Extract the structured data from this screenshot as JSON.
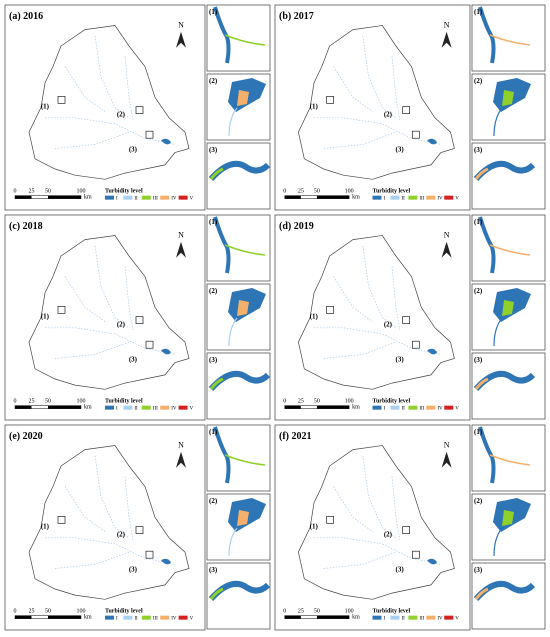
{
  "panels": [
    {
      "label": "(a) 2016"
    },
    {
      "label": "(b) 2017"
    },
    {
      "label": "(c) 2018"
    },
    {
      "label": "(d) 2019"
    },
    {
      "label": "(e) 2020"
    },
    {
      "label": "(f) 2021"
    }
  ],
  "north": "N",
  "sites": [
    "(1)",
    "(2)",
    "(3)"
  ],
  "scale": {
    "ticks": [
      "0",
      "25",
      "50",
      "100"
    ],
    "unit": "km"
  },
  "legend": {
    "title": "Turbidity level",
    "levels": [
      {
        "label": "I",
        "color": "#2e75b6"
      },
      {
        "label": "II",
        "color": "#a9d1ef"
      },
      {
        "label": "III",
        "color": "#8fd12a"
      },
      {
        "label": "IV",
        "color": "#f4b06a"
      },
      {
        "label": "V",
        "color": "#d42020"
      }
    ]
  }
}
